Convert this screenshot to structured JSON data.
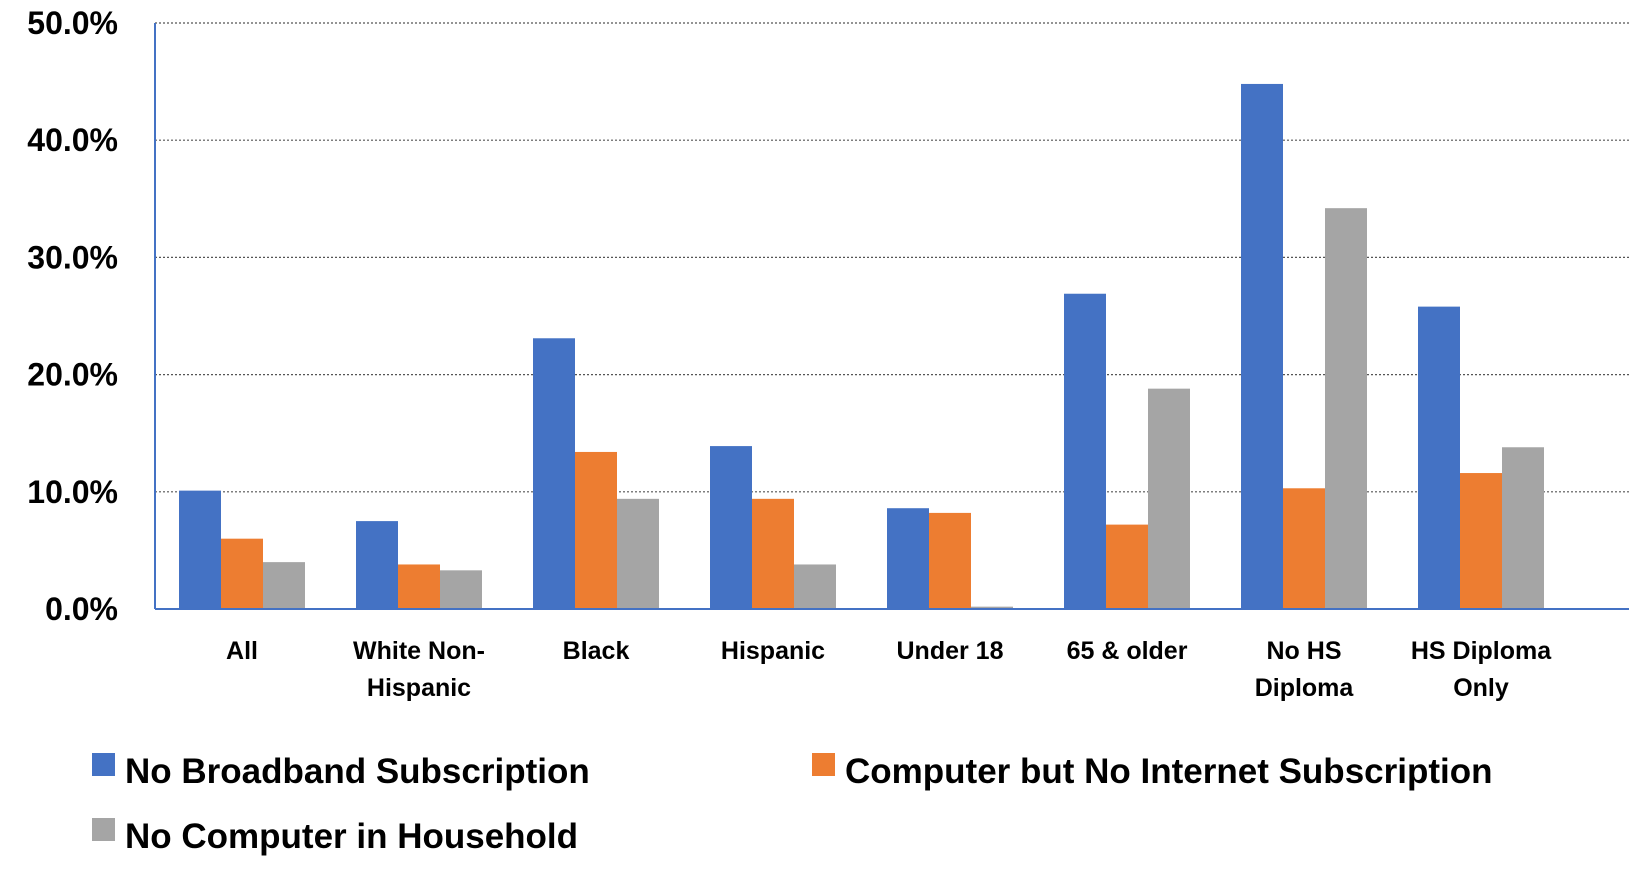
{
  "chart_data": {
    "type": "bar",
    "title": "",
    "xlabel": "",
    "ylabel": "",
    "ylim": [
      0,
      50
    ],
    "y_tick_values": [
      0,
      10,
      20,
      30,
      40,
      50
    ],
    "y_tick_labels": [
      "0.0%",
      "10.0%",
      "20.0%",
      "30.0%",
      "40.0%",
      "50.0%"
    ],
    "grid": "horizontal dotted",
    "legend_position": "bottom",
    "categories": [
      [
        "All"
      ],
      [
        "White Non-",
        "Hispanic"
      ],
      [
        "Black"
      ],
      [
        "Hispanic"
      ],
      [
        "Under 18"
      ],
      [
        "65 & older"
      ],
      [
        "No HS",
        "Diploma"
      ],
      [
        "HS Diploma",
        "Only"
      ]
    ],
    "series": [
      {
        "name": "No Broadband Subscription",
        "color": "#4472C4",
        "values": [
          10.1,
          7.5,
          23.1,
          13.9,
          8.6,
          26.9,
          44.8,
          25.8
        ]
      },
      {
        "name": "Computer but No Internet Subscription",
        "color": "#ED7D31",
        "values": [
          6.0,
          3.8,
          13.4,
          9.4,
          8.2,
          7.2,
          10.3,
          11.6
        ]
      },
      {
        "name": "No Computer in Household",
        "color": "#A5A5A5",
        "values": [
          4.0,
          3.3,
          9.4,
          3.8,
          0.2,
          18.8,
          34.2,
          13.8
        ]
      }
    ]
  }
}
